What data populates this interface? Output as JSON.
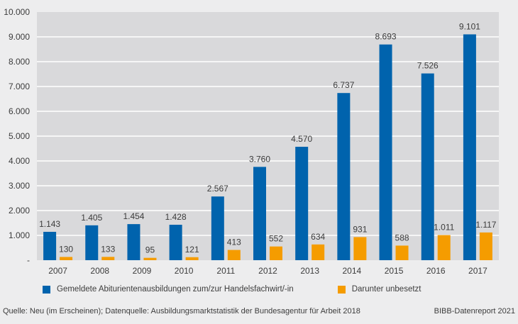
{
  "chart_data": {
    "type": "bar",
    "title": "",
    "xlabel": "",
    "ylabel": "",
    "categories": [
      "2007",
      "2008",
      "2009",
      "2010",
      "2011",
      "2012",
      "2013",
      "2014",
      "2015",
      "2016",
      "2017"
    ],
    "series": [
      {
        "name": "Gemeldete Abiturientenausbildungen zum/zur Handelsfachwirt/-in",
        "color": "#0063ad",
        "values": [
          1143,
          1405,
          1454,
          1428,
          2567,
          3760,
          4570,
          6737,
          8693,
          7526,
          9101
        ],
        "labels": [
          "1.143",
          "1.405",
          "1.454",
          "1.428",
          "2.567",
          "3.760",
          "4.570",
          "6.737",
          "8.693",
          "7.526",
          "9.101"
        ]
      },
      {
        "name": "Darunter unbesetzt",
        "color": "#f59c00",
        "values": [
          130,
          133,
          95,
          121,
          413,
          552,
          634,
          931,
          588,
          1011,
          1117
        ],
        "labels": [
          "130",
          "133",
          "95",
          "121",
          "413",
          "552",
          "634",
          "931",
          "588",
          "1.011",
          "1.117"
        ]
      }
    ],
    "ylim": [
      0,
      10000
    ],
    "yticks": [
      0,
      1000,
      2000,
      3000,
      4000,
      5000,
      6000,
      7000,
      8000,
      9000,
      10000
    ],
    "ytick_labels": [
      "-",
      "1.000",
      "2.000",
      "3.000",
      "4.000",
      "5.000",
      "6.000",
      "7.000",
      "8.000",
      "9.000",
      "10.000"
    ],
    "grid": true,
    "legend_position": "bottom"
  },
  "footer": {
    "source": "Quelle: Neu (im Erscheinen); Datenquelle: Ausbildungsmarktstatistik der Bundesagentur für Arbeit 2018",
    "credit": "BIBB-Datenreport 2021"
  }
}
